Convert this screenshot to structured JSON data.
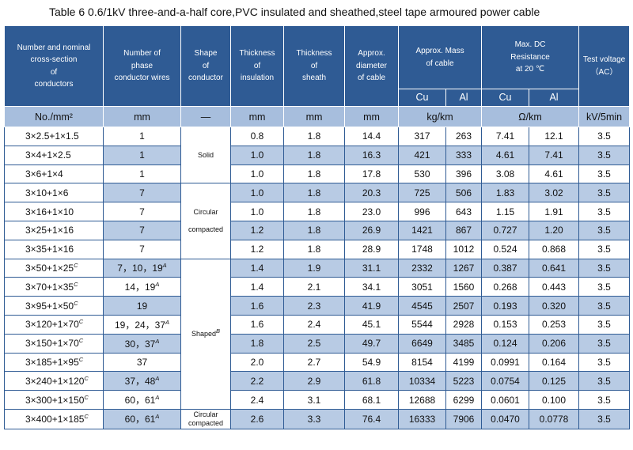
{
  "title": "Table 6   0.6/1kV three-and-a-half core,PVC insulated and sheathed,steel tape armoured power cable",
  "headers": {
    "conductors": [
      "Number and nominal",
      "cross-section",
      "of",
      "conductors"
    ],
    "phase_wires": [
      "Number of",
      "phase",
      "conductor wires"
    ],
    "shape": [
      "Shape",
      "of",
      "conductor"
    ],
    "thick_ins": [
      "Thickness",
      "of",
      "insulation"
    ],
    "thick_sheath": [
      "Thickness",
      "of",
      "sheath"
    ],
    "diameter": [
      "Approx.",
      "diameter",
      "of cable"
    ],
    "mass": [
      "Approx. Mass",
      "of cable"
    ],
    "resistance": [
      "Max. DC",
      "Resistance",
      "at 20 ℃"
    ],
    "test_voltage": [
      "Test voltage",
      "（AC）"
    ],
    "cu": "Cu",
    "al": "Al"
  },
  "units": [
    "No./mm²",
    "mm",
    "—",
    "mm",
    "mm",
    "mm",
    "kg/km",
    "Ω/km",
    "kV/5min"
  ],
  "shapes": [
    "Solid",
    "Circular",
    "compacted",
    "Shaped",
    "B",
    "Circular",
    "compacted"
  ],
  "rows": [
    {
      "size": "3×2.5+1×1.5",
      "sup": "",
      "wires": "1",
      "wsup": "",
      "ins": "0.8",
      "sheath": "1.8",
      "dia": "14.4",
      "mcu": "317",
      "mal": "263",
      "rcu": "7.41",
      "ral": "12.1",
      "tv": "3.5"
    },
    {
      "size": "3×4+1×2.5",
      "sup": "",
      "wires": "1",
      "wsup": "",
      "ins": "1.0",
      "sheath": "1.8",
      "dia": "16.3",
      "mcu": "421",
      "mal": "333",
      "rcu": "4.61",
      "ral": "7.41",
      "tv": "3.5"
    },
    {
      "size": "3×6+1×4",
      "sup": "",
      "wires": "1",
      "wsup": "",
      "ins": "1.0",
      "sheath": "1.8",
      "dia": "17.8",
      "mcu": "530",
      "mal": "396",
      "rcu": "3.08",
      "ral": "4.61",
      "tv": "3.5"
    },
    {
      "size": "3×10+1×6",
      "sup": "",
      "wires": "7",
      "wsup": "",
      "ins": "1.0",
      "sheath": "1.8",
      "dia": "20.3",
      "mcu": "725",
      "mal": "506",
      "rcu": "1.83",
      "ral": "3.02",
      "tv": "3.5"
    },
    {
      "size": "3×16+1×10",
      "sup": "",
      "wires": "7",
      "wsup": "",
      "ins": "1.0",
      "sheath": "1.8",
      "dia": "23.0",
      "mcu": "996",
      "mal": "643",
      "rcu": "1.15",
      "ral": "1.91",
      "tv": "3.5"
    },
    {
      "size": "3×25+1×16",
      "sup": "",
      "wires": "7",
      "wsup": "",
      "ins": "1.2",
      "sheath": "1.8",
      "dia": "26.9",
      "mcu": "1421",
      "mal": "867",
      "rcu": "0.727",
      "ral": "1.20",
      "tv": "3.5"
    },
    {
      "size": "3×35+1×16",
      "sup": "",
      "wires": "7",
      "wsup": "",
      "ins": "1.2",
      "sheath": "1.8",
      "dia": "28.9",
      "mcu": "1748",
      "mal": "1012",
      "rcu": "0.524",
      "ral": "0.868",
      "tv": "3.5"
    },
    {
      "size": "3×50+1×25",
      "sup": "C",
      "wires": "7，10，19",
      "wsup": "A",
      "ins": "1.4",
      "sheath": "1.9",
      "dia": "31.1",
      "mcu": "2332",
      "mal": "1267",
      "rcu": "0.387",
      "ral": "0.641",
      "tv": "3.5"
    },
    {
      "size": "3×70+1×35",
      "sup": "C",
      "wires": "14，19",
      "wsup": "A",
      "ins": "1.4",
      "sheath": "2.1",
      "dia": "34.1",
      "mcu": "3051",
      "mal": "1560",
      "rcu": "0.268",
      "ral": "0.443",
      "tv": "3.5"
    },
    {
      "size": "3×95+1×50",
      "sup": "C",
      "wires": "19",
      "wsup": "",
      "ins": "1.6",
      "sheath": "2.3",
      "dia": "41.9",
      "mcu": "4545",
      "mal": "2507",
      "rcu": "0.193",
      "ral": "0.320",
      "tv": "3.5"
    },
    {
      "size": "3×120+1×70",
      "sup": "C",
      "wires": "19，24，37",
      "wsup": "A",
      "ins": "1.6",
      "sheath": "2.4",
      "dia": "45.1",
      "mcu": "5544",
      "mal": "2928",
      "rcu": "0.153",
      "ral": "0.253",
      "tv": "3.5"
    },
    {
      "size": "3×150+1×70",
      "sup": "C",
      "wires": "30，37",
      "wsup": "A",
      "ins": "1.8",
      "sheath": "2.5",
      "dia": "49.7",
      "mcu": "6649",
      "mal": "3485",
      "rcu": "0.124",
      "ral": "0.206",
      "tv": "3.5"
    },
    {
      "size": "3×185+1×95",
      "sup": "C",
      "wires": "37",
      "wsup": "",
      "ins": "2.0",
      "sheath": "2.7",
      "dia": "54.9",
      "mcu": "8154",
      "mal": "4199",
      "rcu": "0.0991",
      "ral": "0.164",
      "tv": "3.5"
    },
    {
      "size": "3×240+1×120",
      "sup": "C",
      "wires": "37，48",
      "wsup": "A",
      "ins": "2.2",
      "sheath": "2.9",
      "dia": "61.8",
      "mcu": "10334",
      "mal": "5223",
      "rcu": "0.0754",
      "ral": "0.125",
      "tv": "3.5"
    },
    {
      "size": "3×300+1×150",
      "sup": "C",
      "wires": "60，61",
      "wsup": "A",
      "ins": "2.4",
      "sheath": "3.1",
      "dia": "68.1",
      "mcu": "12688",
      "mal": "6299",
      "rcu": "0.0601",
      "ral": "0.100",
      "tv": "3.5"
    },
    {
      "size": "3×400+1×185",
      "sup": "C",
      "wires": "60，61",
      "wsup": "A",
      "ins": "2.6",
      "sheath": "3.3",
      "dia": "76.4",
      "mcu": "16333",
      "mal": "7906",
      "rcu": "0.0470",
      "ral": "0.0778",
      "tv": "3.5"
    }
  ]
}
